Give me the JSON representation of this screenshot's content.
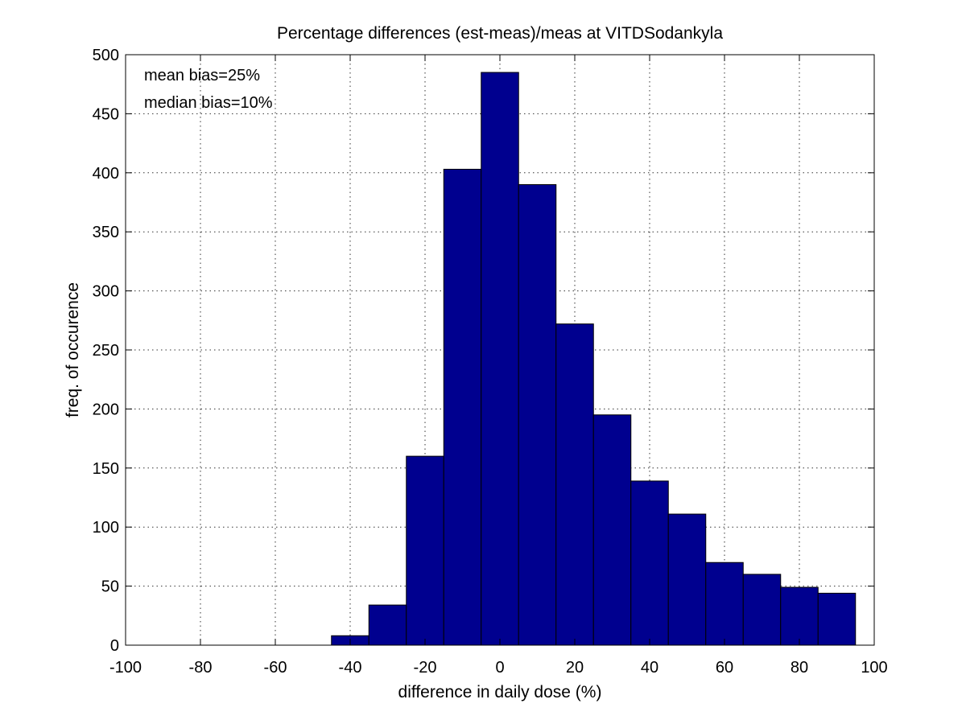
{
  "chart_data": {
    "type": "bar",
    "title": "Percentage differences (est-meas)/meas at VITDSodankyla",
    "xlabel": "difference in daily dose (%)",
    "ylabel": "freq. of occurence",
    "xlim": [
      -100,
      100
    ],
    "ylim": [
      0,
      500
    ],
    "grid": true,
    "xticks": [
      -100,
      -80,
      -60,
      -40,
      -20,
      0,
      20,
      40,
      60,
      80,
      100
    ],
    "yticks": [
      0,
      50,
      100,
      150,
      200,
      250,
      300,
      350,
      400,
      450,
      500
    ],
    "bin_width": 10,
    "bins": [
      -40,
      -30,
      -20,
      -10,
      0,
      10,
      20,
      30,
      40,
      50,
      60,
      70,
      80,
      90
    ],
    "values": [
      8,
      34,
      160,
      403,
      485,
      390,
      272,
      195,
      139,
      111,
      70,
      60,
      49,
      44
    ],
    "bar_color": "#00008f",
    "annotations": [
      {
        "text": "mean bias=25%"
      },
      {
        "text": "median bias=10%"
      }
    ]
  }
}
